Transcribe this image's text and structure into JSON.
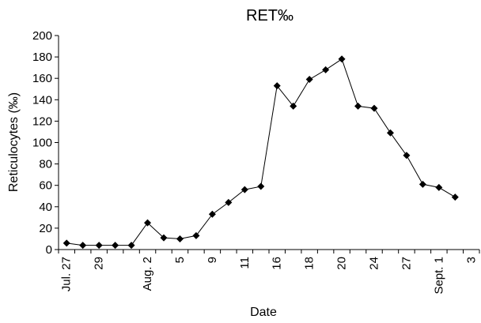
{
  "chart_data": {
    "type": "line",
    "title": "RET‰",
    "xlabel": "Date",
    "ylabel": "Reticulocytes (‰)",
    "ylim": [
      0,
      200
    ],
    "yticks": [
      0,
      20,
      40,
      60,
      80,
      100,
      120,
      140,
      160,
      180,
      200
    ],
    "grid": false,
    "legend": "none",
    "categories": [
      "Jul. 27",
      "",
      "29",
      "",
      "",
      "Aug. 2",
      "",
      "5",
      "",
      "9",
      "",
      "11",
      "",
      "16",
      "",
      "18",
      "",
      "20",
      "",
      "24",
      "",
      "27",
      "",
      "Sept. 1",
      "",
      "3"
    ],
    "series": [
      {
        "color": "#000000",
        "marker": "diamond",
        "values": [
          6,
          4,
          4,
          4,
          4,
          25,
          11,
          10,
          13,
          33,
          44,
          56,
          59,
          153,
          134,
          159,
          168,
          178,
          134,
          132,
          109,
          88,
          61,
          58,
          49,
          null
        ]
      }
    ]
  }
}
